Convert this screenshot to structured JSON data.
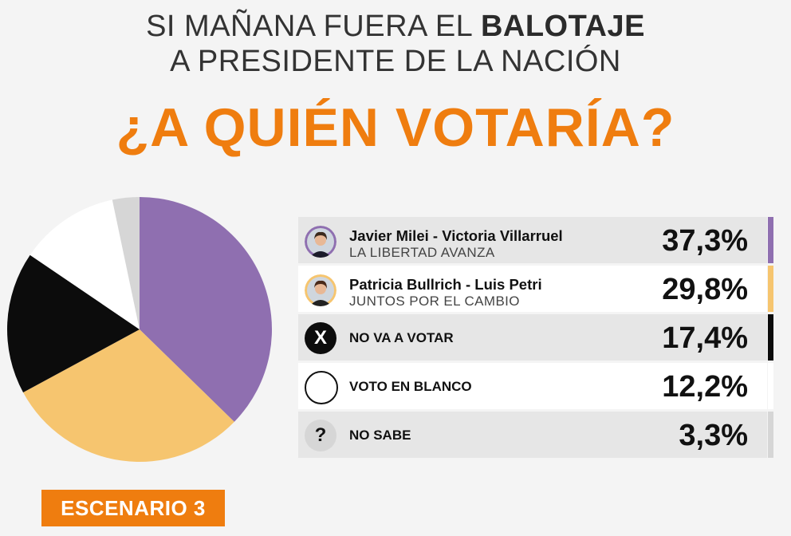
{
  "header": {
    "line1_pre": "SI MAÑANA FUERA EL ",
    "line1_bold": "BALOTAJE",
    "line2": "A PRESIDENTE DE LA NACIÓN",
    "question": "¿A QUIÉN VOTARÍA?"
  },
  "scenario_label": "ESCENARIO 3",
  "colors": {
    "accent": "#ef7d0f",
    "milei": "#8f6fb0",
    "bullrich": "#f6c56f",
    "no_va": "#0c0c0c",
    "blanco": "#ffffff",
    "no_sabe": "#d6d6d6"
  },
  "chart_data": {
    "type": "pie",
    "title": "¿A QUIÉN VOTARÍA?",
    "slices": [
      {
        "name": "Javier Milei - Victoria Villarruel",
        "sub": "LA LIBERTAD AVANZA",
        "value": 37.3,
        "label": "37,3%",
        "color": "#8f6fb0",
        "icon": "milei-avatar-icon"
      },
      {
        "name": "Patricia Bullrich - Luis Petri",
        "sub": "JUNTOS POR EL CAMBIO",
        "value": 29.8,
        "label": "29,8%",
        "color": "#f6c56f",
        "icon": "bullrich-avatar-icon"
      },
      {
        "name": "NO VA A VOTAR",
        "value": 17.4,
        "label": "17,4%",
        "color": "#0c0c0c",
        "icon": "x-icon",
        "symbol": "X"
      },
      {
        "name": "VOTO EN BLANCO",
        "value": 12.2,
        "label": "12,2%",
        "color": "#ffffff",
        "icon": "blank-circle-icon",
        "symbol": ""
      },
      {
        "name": "NO SABE",
        "value": 3.3,
        "label": "3,3%",
        "color": "#d6d6d6",
        "icon": "question-icon",
        "symbol": "?"
      }
    ]
  }
}
